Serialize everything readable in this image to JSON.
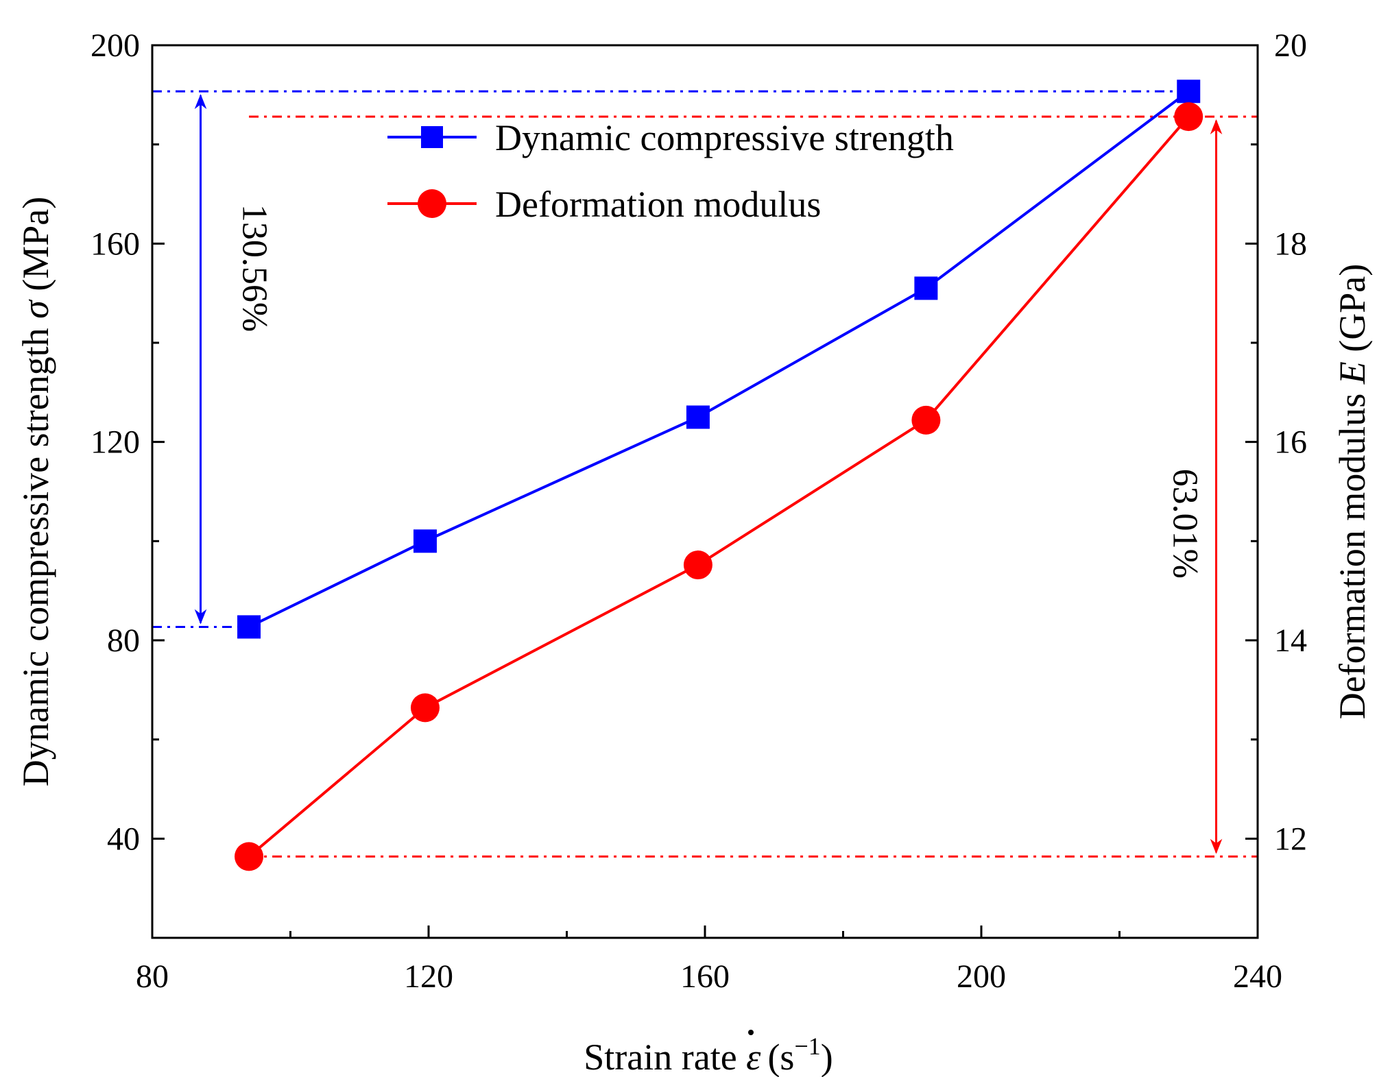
{
  "chart_data": {
    "type": "line",
    "x_axis": {
      "label_prefix": "Strain rate ",
      "symbol": "ε",
      "units": "(s",
      "exponent": "−1",
      "units_close": ")",
      "range": [
        80,
        240
      ],
      "ticks": [
        80,
        120,
        160,
        200,
        240
      ],
      "tick_labels": [
        "80",
        "120",
        "160",
        "200",
        "240"
      ],
      "minor_ticks": [
        100,
        140,
        180,
        220
      ]
    },
    "y_left": {
      "label_prefix": "Dynamic compressive strength ",
      "symbol": "σ",
      "units": " (MPa)",
      "range": [
        20,
        200
      ],
      "ticks": [
        40,
        80,
        120,
        160,
        200
      ],
      "tick_labels": [
        "40",
        "80",
        "120",
        "160",
        "200"
      ],
      "minor_ticks": [
        60,
        100,
        140,
        180
      ]
    },
    "y_right": {
      "label_prefix": "Deformation modulus ",
      "symbol": "E",
      "units": " (GPa)",
      "range": [
        11,
        20
      ],
      "ticks": [
        12,
        14,
        16,
        18,
        20
      ],
      "tick_labels": [
        "12",
        "14",
        "16",
        "18",
        "20"
      ],
      "minor_ticks": [
        13,
        15,
        17,
        19
      ]
    },
    "series": [
      {
        "name": "Dynamic compressive strength",
        "axis": "left",
        "color": "#0000ff",
        "marker": "square",
        "x": [
          94,
          119.5,
          159,
          192,
          230
        ],
        "values": [
          82.7,
          100,
          125,
          151,
          190.7
        ]
      },
      {
        "name": "Deformation modulus",
        "axis": "right",
        "color": "#ff0000",
        "marker": "circle",
        "x": [
          94,
          119.5,
          159,
          192,
          230
        ],
        "values": [
          11.82,
          13.32,
          14.76,
          16.22,
          19.28
        ]
      }
    ],
    "annotations": [
      {
        "text": "130.56%",
        "color": "#0000ff",
        "axis": "left",
        "x": 87,
        "from": 82.7,
        "to": 190.7,
        "guide_x_from": 80,
        "guide_x_to": 230
      },
      {
        "text": "63.01%",
        "color": "#ff0000",
        "axis": "right",
        "x": 234,
        "from": 11.82,
        "to": 19.28,
        "guide_x_from": 94,
        "guide_x_to": 240
      }
    ],
    "legend_position": "top-center"
  }
}
